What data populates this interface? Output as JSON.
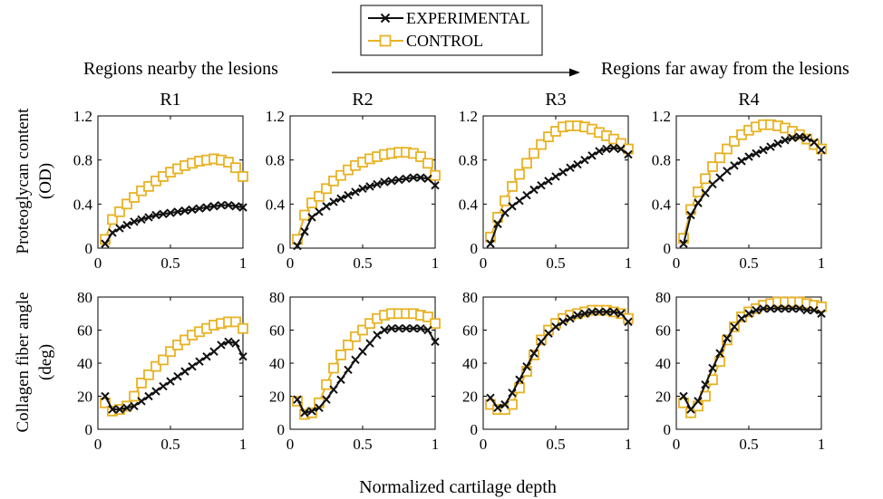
{
  "chart_data": {
    "type": "line",
    "legend": {
      "placement": "top-center",
      "entries": [
        {
          "label": "EXPERIMENTAL",
          "color": "#111111",
          "marker": "x"
        },
        {
          "label": "CONTROL",
          "color": "#e8b224",
          "marker": "square"
        }
      ]
    },
    "region_arrow": {
      "left_text": "Regions nearby the lesions",
      "right_text": "Regions far away from the lesions"
    },
    "xlabel": "Normalized cartilage depth",
    "rows": [
      {
        "ylabel_lines": [
          "Proteoglycan content",
          "(OD)"
        ],
        "ylim": [
          0,
          1.2
        ],
        "yticks": [
          "0",
          "0.4",
          "0.8",
          "1.2"
        ]
      },
      {
        "ylabel_lines": [
          "Collagen fiber angle",
          "(deg)"
        ],
        "ylim": [
          0,
          80
        ],
        "yticks": [
          "0",
          "20",
          "40",
          "60",
          "80"
        ]
      }
    ],
    "xlim": [
      0,
      1
    ],
    "xticks": [
      "0",
      "0.5",
      "1"
    ],
    "x": [
      0.05,
      0.1,
      0.15,
      0.2,
      0.25,
      0.3,
      0.35,
      0.4,
      0.45,
      0.5,
      0.55,
      0.6,
      0.65,
      0.7,
      0.75,
      0.8,
      0.85,
      0.9,
      0.95,
      1.0
    ],
    "panels": [
      {
        "title": "R1",
        "row": 0,
        "col": 0,
        "series": [
          {
            "name": "EXPERIMENTAL",
            "values": [
              0.04,
              0.14,
              0.18,
              0.21,
              0.24,
              0.26,
              0.28,
              0.3,
              0.31,
              0.32,
              0.33,
              0.34,
              0.35,
              0.36,
              0.37,
              0.38,
              0.39,
              0.39,
              0.38,
              0.37
            ]
          },
          {
            "name": "CONTROL",
            "values": [
              0.08,
              0.26,
              0.33,
              0.4,
              0.46,
              0.52,
              0.56,
              0.61,
              0.65,
              0.69,
              0.72,
              0.75,
              0.77,
              0.79,
              0.8,
              0.81,
              0.8,
              0.78,
              0.73,
              0.65
            ]
          }
        ]
      },
      {
        "title": "R2",
        "row": 0,
        "col": 1,
        "series": [
          {
            "name": "EXPERIMENTAL",
            "values": [
              0.02,
              0.15,
              0.28,
              0.33,
              0.38,
              0.42,
              0.45,
              0.48,
              0.51,
              0.54,
              0.56,
              0.58,
              0.6,
              0.61,
              0.62,
              0.63,
              0.64,
              0.64,
              0.63,
              0.57
            ]
          },
          {
            "name": "CONTROL",
            "values": [
              0.08,
              0.3,
              0.41,
              0.47,
              0.54,
              0.61,
              0.66,
              0.71,
              0.75,
              0.78,
              0.81,
              0.83,
              0.85,
              0.86,
              0.87,
              0.87,
              0.86,
              0.83,
              0.77,
              0.66
            ]
          }
        ]
      },
      {
        "title": "R3",
        "row": 0,
        "col": 2,
        "series": [
          {
            "name": "EXPERIMENTAL",
            "values": [
              0.04,
              0.22,
              0.32,
              0.38,
              0.43,
              0.48,
              0.53,
              0.57,
              0.61,
              0.65,
              0.69,
              0.73,
              0.76,
              0.8,
              0.84,
              0.88,
              0.9,
              0.91,
              0.9,
              0.85
            ]
          },
          {
            "name": "CONTROL",
            "values": [
              0.1,
              0.28,
              0.43,
              0.56,
              0.67,
              0.77,
              0.86,
              0.94,
              1.01,
              1.06,
              1.1,
              1.11,
              1.11,
              1.1,
              1.08,
              1.05,
              1.02,
              0.99,
              0.95,
              0.9
            ]
          }
        ]
      },
      {
        "title": "R4",
        "row": 0,
        "col": 3,
        "series": [
          {
            "name": "EXPERIMENTAL",
            "values": [
              0.04,
              0.3,
              0.41,
              0.5,
              0.58,
              0.64,
              0.7,
              0.75,
              0.79,
              0.83,
              0.86,
              0.89,
              0.92,
              0.95,
              0.98,
              1.0,
              1.01,
              1.0,
              0.96,
              0.89
            ]
          },
          {
            "name": "CONTROL",
            "values": [
              0.09,
              0.35,
              0.51,
              0.63,
              0.74,
              0.82,
              0.9,
              0.97,
              1.03,
              1.07,
              1.1,
              1.12,
              1.12,
              1.11,
              1.09,
              1.06,
              1.03,
              0.99,
              0.94,
              0.9
            ]
          }
        ]
      },
      {
        "title": "",
        "row": 1,
        "col": 0,
        "series": [
          {
            "name": "EXPERIMENTAL",
            "values": [
              20,
              12,
              12,
              13,
              14,
              17,
              20,
              23,
              26,
              29,
              32,
              35,
              38,
              41,
              44,
              47,
              51,
              53,
              52,
              44
            ]
          },
          {
            "name": "CONTROL",
            "values": [
              16,
              11,
              12,
              14,
              20,
              28,
              33,
              38,
              42,
              47,
              51,
              54,
              57,
              59,
              61,
              63,
              64,
              65,
              65,
              61
            ]
          }
        ]
      },
      {
        "title": "",
        "row": 1,
        "col": 1,
        "series": [
          {
            "name": "EXPERIMENTAL",
            "values": [
              18,
              10,
              11,
              13,
              18,
              24,
              30,
              36,
              42,
              47,
              52,
              57,
              60,
              61,
              61,
              61,
              61,
              61,
              60,
              53
            ]
          },
          {
            "name": "CONTROL",
            "values": [
              17,
              9,
              10,
              16,
              27,
              37,
              45,
              51,
              56,
              60,
              64,
              67,
              69,
              70,
              70,
              70,
              70,
              69,
              68,
              64
            ]
          }
        ]
      },
      {
        "title": "",
        "row": 1,
        "col": 2,
        "series": [
          {
            "name": "EXPERIMENTAL",
            "values": [
              19,
              13,
              15,
              22,
              30,
              38,
              46,
              53,
              58,
              62,
              65,
              67,
              69,
              70,
              71,
              71,
              71,
              71,
              70,
              65
            ]
          },
          {
            "name": "CONTROL",
            "values": [
              15,
              12,
              12,
              15,
              25,
              35,
              45,
              54,
              60,
              64,
              67,
              69,
              70,
              71,
              72,
              72,
              72,
              71,
              70,
              67
            ]
          }
        ]
      },
      {
        "title": "",
        "row": 1,
        "col": 3,
        "series": [
          {
            "name": "EXPERIMENTAL",
            "values": [
              20,
              12,
              17,
              27,
              37,
              46,
              55,
              62,
              67,
              70,
              72,
              73,
              73,
              73,
              73,
              73,
              73,
              72,
              72,
              70
            ]
          },
          {
            "name": "CONTROL",
            "values": [
              16,
              10,
              14,
              20,
              30,
              41,
              54,
              62,
              68,
              71,
              73,
              75,
              76,
              77,
              77,
              77,
              77,
              76,
              75,
              74
            ]
          }
        ]
      }
    ]
  }
}
